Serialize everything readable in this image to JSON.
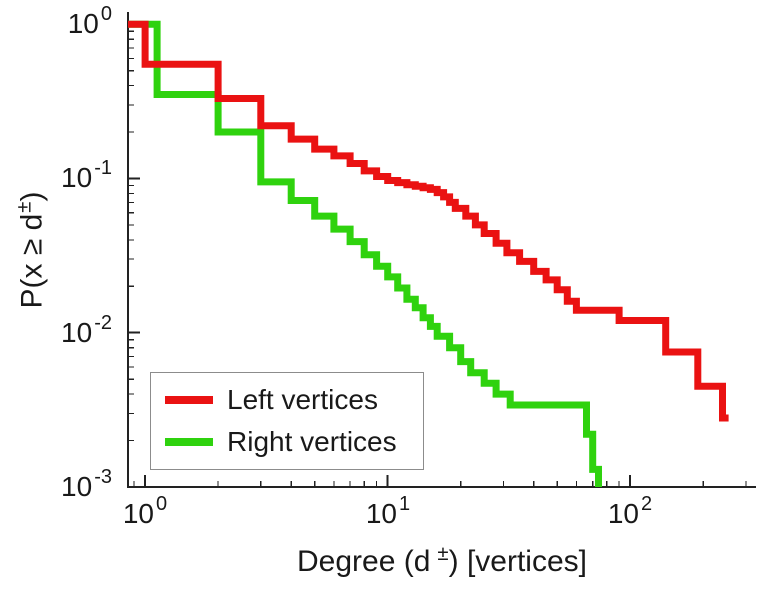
{
  "figure": {
    "background": "#ffffff"
  },
  "chart_data": {
    "type": "line",
    "style": "log-log step plot (complementary cumulative degree distribution)",
    "title": "",
    "xlabel": {
      "pre": "Degree (d",
      "sup": "±",
      "post": ") [vertices]"
    },
    "ylabel": {
      "pre": "P(x ≥ d",
      "sup": "±",
      "post": ")"
    },
    "x_scale": "log",
    "y_scale": "log",
    "xlim": [
      0.85,
      330
    ],
    "ylim": [
      0.001,
      1.2
    ],
    "grid": false,
    "legend_position": "lower-left",
    "axis_color": "#222222",
    "text_color": "#191919",
    "legend_border_color": "#8c8c8c",
    "x_ticks": [
      {
        "value": 1,
        "base": "10",
        "exp": "0"
      },
      {
        "value": 10,
        "base": "10",
        "exp": "1"
      },
      {
        "value": 100,
        "base": "10",
        "exp": "2"
      }
    ],
    "y_ticks": [
      {
        "value": 1,
        "base": "10",
        "exp": "0"
      },
      {
        "value": 0.1,
        "base": "10",
        "exp": "-1"
      },
      {
        "value": 0.01,
        "base": "10",
        "exp": "-2"
      },
      {
        "value": 0.001,
        "base": "10",
        "exp": "-3"
      }
    ],
    "series": [
      {
        "name": "Left vertices",
        "color": "#ea1212",
        "line_width": 7,
        "start": [
          0.85,
          1.0
        ],
        "steps": [
          [
            1,
            0.55
          ],
          [
            2,
            0.33
          ],
          [
            3,
            0.22
          ],
          [
            4,
            0.18
          ],
          [
            5,
            0.155
          ],
          [
            6,
            0.14
          ],
          [
            7,
            0.125
          ],
          [
            8,
            0.112
          ],
          [
            9,
            0.103
          ],
          [
            10,
            0.097
          ],
          [
            11,
            0.094
          ],
          [
            12,
            0.091
          ],
          [
            13,
            0.089
          ],
          [
            14,
            0.087
          ],
          [
            15,
            0.085
          ],
          [
            16,
            0.081
          ],
          [
            17,
            0.076
          ],
          [
            18,
            0.07
          ],
          [
            19,
            0.064
          ],
          [
            21,
            0.057
          ],
          [
            23,
            0.05
          ],
          [
            25,
            0.044
          ],
          [
            28,
            0.038
          ],
          [
            31,
            0.033
          ],
          [
            35,
            0.029
          ],
          [
            40,
            0.025
          ],
          [
            45,
            0.022
          ],
          [
            50,
            0.019
          ],
          [
            55,
            0.016
          ],
          [
            60,
            0.014
          ],
          [
            90,
            0.012
          ],
          [
            140,
            0.0075
          ],
          [
            190,
            0.0045
          ],
          [
            240,
            0.0028
          ]
        ]
      },
      {
        "name": "Right vertices",
        "color": "#2fd20e",
        "line_width": 7,
        "start": [
          0.85,
          1.0
        ],
        "steps": [
          [
            1.12,
            0.35
          ],
          [
            2,
            0.2
          ],
          [
            3,
            0.095
          ],
          [
            4,
            0.072
          ],
          [
            5,
            0.057
          ],
          [
            6,
            0.047
          ],
          [
            7,
            0.039
          ],
          [
            8,
            0.032
          ],
          [
            9,
            0.027
          ],
          [
            10,
            0.023
          ],
          [
            11,
            0.0195
          ],
          [
            12,
            0.0165
          ],
          [
            13,
            0.0145
          ],
          [
            14,
            0.0125
          ],
          [
            15,
            0.011
          ],
          [
            16,
            0.0095
          ],
          [
            18,
            0.008
          ],
          [
            20,
            0.0065
          ],
          [
            22,
            0.0055
          ],
          [
            25,
            0.0047
          ],
          [
            28,
            0.004
          ],
          [
            32,
            0.0034
          ],
          [
            66,
            0.0022
          ],
          [
            70,
            0.0013
          ],
          [
            74,
            0.00085
          ]
        ]
      }
    ]
  }
}
